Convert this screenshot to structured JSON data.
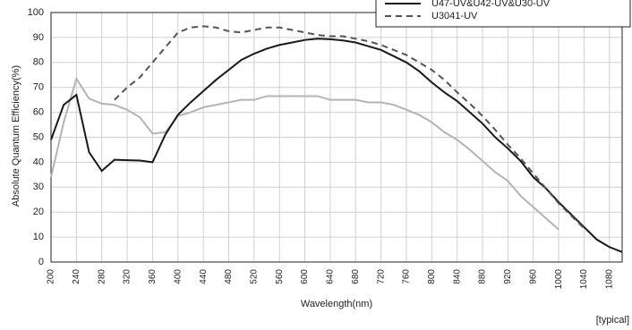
{
  "chart_data": {
    "type": "line",
    "y_label": "Absolute Quantum Efficiency(%)",
    "x_label": "Wavelength(nm)",
    "note": "[typical]",
    "x": [
      200,
      220,
      240,
      260,
      280,
      300,
      320,
      340,
      360,
      380,
      400,
      420,
      440,
      460,
      480,
      500,
      520,
      540,
      560,
      580,
      600,
      620,
      640,
      660,
      680,
      700,
      720,
      740,
      760,
      780,
      800,
      820,
      840,
      860,
      880,
      900,
      920,
      940,
      960,
      980,
      1000,
      1020,
      1040,
      1060,
      1080,
      1100
    ],
    "series": [
      {
        "color": "#b4b4b4",
        "dash": false,
        "values": [
          34,
          56,
          73.5,
          65.5,
          63.5,
          63,
          61,
          58,
          51.5,
          52,
          58.5,
          60,
          62,
          63,
          64,
          65,
          65,
          66.5,
          66.5,
          66.5,
          66.5,
          66.5,
          65,
          65,
          65,
          64,
          64,
          63,
          61,
          59,
          56,
          52,
          49,
          45,
          40.5,
          36,
          32.5,
          26.5,
          22,
          17.5,
          13,
          null,
          null,
          null,
          null,
          null
        ]
      },
      {
        "name": "U47-UV&U42-UV&U30-UV",
        "color": "#1a1a1a",
        "dash": false,
        "values": [
          49,
          63,
          67,
          44,
          36.5,
          41,
          40.8,
          40.7,
          40,
          51,
          59,
          64,
          68.5,
          73,
          77,
          81,
          83.5,
          85.5,
          87,
          88,
          89,
          89.5,
          89.3,
          88.8,
          88,
          86.5,
          85,
          82.5,
          80,
          76.5,
          72,
          68,
          64.5,
          60,
          55.5,
          50,
          45.5,
          40.5,
          34,
          29.5,
          24,
          19,
          14,
          9,
          6,
          4
        ]
      },
      {
        "name": "U3041-UV",
        "color": "#555555",
        "dash": true,
        "values": [
          null,
          null,
          null,
          null,
          null,
          65,
          70,
          74,
          80,
          86,
          92,
          94,
          94.5,
          94,
          92.5,
          92,
          93,
          94,
          94,
          93,
          92,
          91,
          90.5,
          90.5,
          89.5,
          88.5,
          87,
          85,
          83,
          80,
          77,
          73,
          68,
          63.5,
          58.5,
          53,
          47,
          41.5,
          35.5,
          29.5,
          23.5,
          18.5,
          13.5,
          null,
          null,
          null
        ]
      }
    ],
    "xlim": [
      200,
      1100
    ],
    "ylim": [
      0,
      100
    ],
    "xticks": [
      200,
      240,
      280,
      320,
      360,
      400,
      440,
      480,
      520,
      560,
      600,
      640,
      680,
      720,
      760,
      800,
      840,
      880,
      920,
      960,
      1000,
      1040,
      1080
    ],
    "yticks": [
      0,
      10,
      20,
      30,
      40,
      50,
      60,
      70,
      80,
      90,
      100
    ],
    "grid": true
  }
}
